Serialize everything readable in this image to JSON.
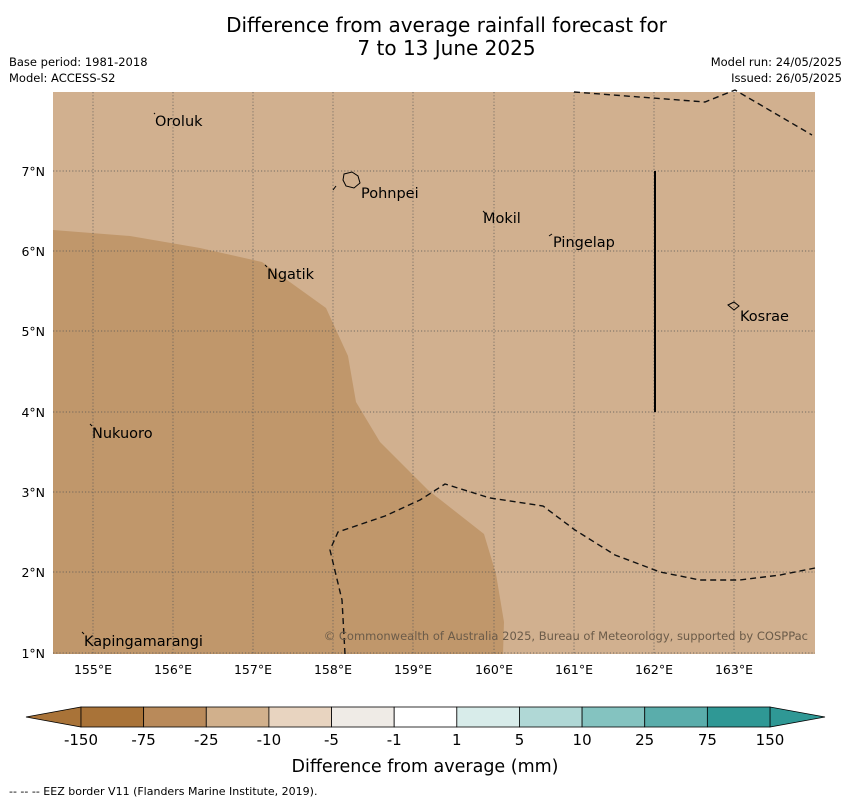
{
  "title_line1": "Difference from average rainfall forecast for",
  "title_line2": "7 to 13 June 2025",
  "base_period": "Base period: 1981-2018",
  "model": "Model: ACCESS-S2",
  "model_run": "Model run: 24/05/2025",
  "issued": "Issued: 26/05/2025",
  "lat_labels": [
    "1°N",
    "2°N",
    "3°N",
    "4°N",
    "5°N",
    "6°N",
    "7°N"
  ],
  "lon_labels": [
    "155°E",
    "156°E",
    "157°E",
    "158°E",
    "159°E",
    "160°E",
    "161°E",
    "162°E",
    "163°E"
  ],
  "places": [
    "Oroluk",
    "Pohnpei",
    "Mokil",
    "Pingelap",
    "Ngatik",
    "Kosrae",
    "Nukuoro",
    "Kapingamarangi"
  ],
  "copyright": "© Commonwealth of Australia 2025, Bureau of Meteorology, supported by COSPPac",
  "colorbar": {
    "ticks": [
      "-150",
      "-75",
      "-25",
      "-10",
      "-5",
      "-1",
      "1",
      "5",
      "10",
      "25",
      "75",
      "150"
    ],
    "colors": [
      "#a97338",
      "#b98a5a",
      "#d1b08c",
      "#e8d4c0",
      "#efebe6",
      "#ffffff",
      "#d8ecea",
      "#b0d8d6",
      "#84c3c0",
      "#5aadab",
      "#2f9895"
    ],
    "label": "Difference from average (mm)"
  },
  "map_colors": {
    "dry_strong": "#c0976b",
    "dry_light": "#d1b08f"
  },
  "footer": "--  --  -- EEZ border V11 (Flanders Marine Institute, 2019)."
}
